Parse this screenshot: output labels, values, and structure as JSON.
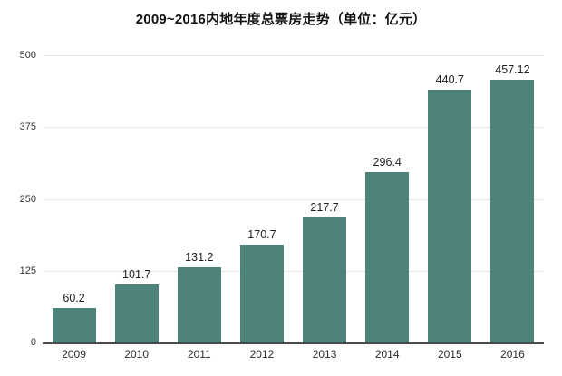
{
  "colors": {
    "bar": "#4e837c",
    "gridline": "#e5e5e5",
    "axis_line": "#4a4a4a",
    "title_text": "#111111",
    "label_text": "#2b2b2b"
  },
  "chart_data": {
    "type": "bar",
    "title": "2009~2016内地年度总票房走势（单位：亿元）",
    "unit": "亿元",
    "categories": [
      "2009",
      "2010",
      "2011",
      "2012",
      "2013",
      "2014",
      "2015",
      "2016"
    ],
    "values": [
      60.2,
      101.7,
      131.2,
      170.7,
      217.7,
      296.4,
      440.7,
      457.12
    ],
    "value_labels": [
      "60.2",
      "101.7",
      "131.2",
      "170.7",
      "217.7",
      "296.4",
      "440.7",
      "457.12"
    ],
    "xlabel": "",
    "ylabel": "",
    "ylim": [
      0,
      500
    ],
    "yticks": [
      0,
      125,
      250,
      375,
      500
    ],
    "grid": true,
    "legend": "none"
  }
}
